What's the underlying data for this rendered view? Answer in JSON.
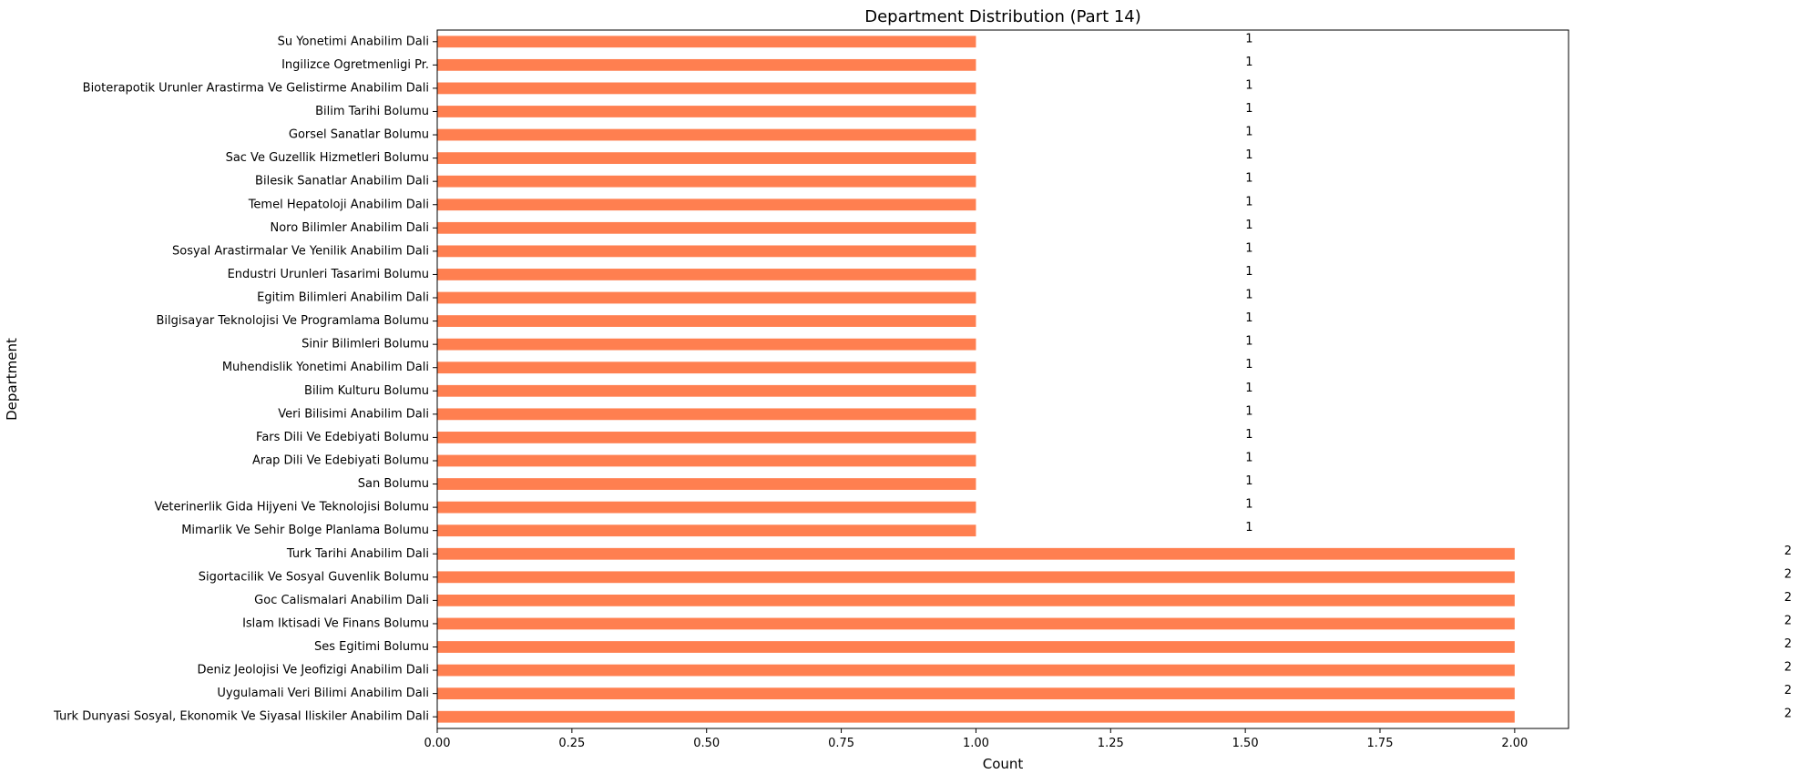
{
  "chart_data": {
    "type": "bar",
    "orientation": "horizontal",
    "title": "Department Distribution (Part 14)",
    "xlabel": "Count",
    "ylabel": "Department",
    "xlim": [
      0,
      2.1
    ],
    "xticks": [
      0.0,
      0.25,
      0.5,
      0.75,
      1.0,
      1.25,
      1.5,
      1.75,
      2.0
    ],
    "xtick_labels": [
      "0.00",
      "0.25",
      "0.50",
      "0.75",
      "1.00",
      "1.25",
      "1.50",
      "1.75",
      "2.00"
    ],
    "bar_color": "#ff7f50",
    "grid": false,
    "legend": "none",
    "categories": [
      "Su Yonetimi Anabilim Dali",
      "Ingilizce Ogretmenligi Pr.",
      "Bioterapotik Urunler Arastirma Ve Gelistirme Anabilim Dali",
      "Bilim Tarihi Bolumu",
      "Gorsel Sanatlar Bolumu",
      "Sac Ve Guzellik Hizmetleri Bolumu",
      "Bilesik Sanatlar Anabilim Dali",
      "Temel Hepatoloji Anabilim Dali",
      "Noro Bilimler Anabilim Dali",
      "Sosyal Arastirmalar Ve Yenilik Anabilim Dali",
      "Endustri Urunleri Tasarimi Bolumu",
      "Egitim Bilimleri Anabilim Dali",
      "Bilgisayar Teknolojisi Ve Programlama Bolumu",
      "Sinir Bilimleri Bolumu",
      "Muhendislik Yonetimi Anabilim Dali",
      "Bilim Kulturu Bolumu",
      "Veri Bilisimi Anabilim Dali",
      "Fars Dili Ve Edebiyati Bolumu",
      "Arap Dili Ve Edebiyati Bolumu",
      "San Bolumu",
      "Veterinerlik Gida Hijyeni Ve Teknolojisi Bolumu",
      "Mimarlik Ve Sehir Bolge Planlama Bolumu",
      "Turk Tarihi Anabilim Dali",
      "Sigortacilik Ve Sosyal Guvenlik Bolumu",
      "Goc Calismalari Anabilim Dali",
      "Islam Iktisadi Ve Finans Bolumu",
      "Ses Egitimi Bolumu",
      "Deniz Jeolojisi Ve Jeofizigi Anabilim Dali",
      "Uygulamali Veri Bilimi Anabilim Dali",
      "Turk Dunyasi Sosyal, Ekonomik Ve Siyasal Iliskiler Anabilim Dali"
    ],
    "values": [
      1,
      1,
      1,
      1,
      1,
      1,
      1,
      1,
      1,
      1,
      1,
      1,
      1,
      1,
      1,
      1,
      1,
      1,
      1,
      1,
      1,
      1,
      2,
      2,
      2,
      2,
      2,
      2,
      2,
      2
    ],
    "data_labels": [
      "1",
      "1",
      "1",
      "1",
      "1",
      "1",
      "1",
      "1",
      "1",
      "1",
      "1",
      "1",
      "1",
      "1",
      "1",
      "1",
      "1",
      "1",
      "1",
      "1",
      "1",
      "1",
      "2",
      "2",
      "2",
      "2",
      "2",
      "2",
      "2",
      "2"
    ]
  }
}
